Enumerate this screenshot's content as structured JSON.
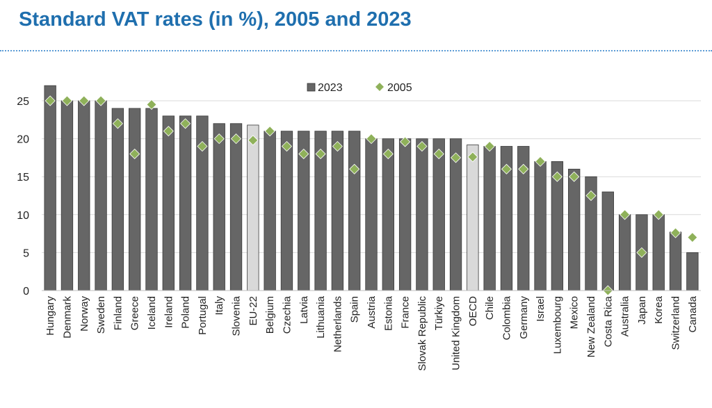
{
  "title": "Standard VAT rates (in %), 2005 and 2023",
  "colors": {
    "title": "#1f6fae",
    "bar": "#666666",
    "bar_highlight": "#d9d9d9",
    "marker": "#8fb15a",
    "grid": "#d9d9d9"
  },
  "chart_data": {
    "type": "bar",
    "title": "Standard VAT rates (in %), 2005 and 2023",
    "xlabel": "",
    "ylabel": "",
    "ylim": [
      0,
      27
    ],
    "yticks": [
      0,
      5,
      10,
      15,
      20,
      25
    ],
    "grid": true,
    "legend_position": "top-center",
    "categories": [
      "Hungary",
      "Denmark",
      "Norway",
      "Sweden",
      "Finland",
      "Greece",
      "Iceland",
      "Ireland",
      "Poland",
      "Portugal",
      "Italy",
      "Slovenia",
      "EU-22",
      "Belgium",
      "Czechia",
      "Latvia",
      "Lithuania",
      "Netherlands",
      "Spain",
      "Austria",
      "Estonia",
      "France",
      "Slovak Republic",
      "Türkiye",
      "United Kingdom",
      "OECD",
      "Chile",
      "Colombia",
      "Germany",
      "Israel",
      "Luxembourg",
      "Mexico",
      "New Zealand",
      "Costa Rica",
      "Australia",
      "Japan",
      "Korea",
      "Switzerland",
      "Canada"
    ],
    "highlight": [
      "EU-22",
      "OECD"
    ],
    "series": [
      {
        "name": "2023",
        "kind": "bar",
        "values": [
          27,
          25,
          25,
          25,
          24,
          24,
          24,
          23,
          23,
          23,
          22,
          22,
          21.8,
          21,
          21,
          21,
          21,
          21,
          21,
          20,
          20,
          20,
          20,
          20,
          20,
          19.2,
          19,
          19,
          19,
          17,
          17,
          16,
          15,
          13,
          10,
          10,
          10,
          7.7,
          5
        ]
      },
      {
        "name": "2005",
        "kind": "marker",
        "values": [
          25,
          25,
          25,
          25,
          22,
          18,
          24.5,
          21,
          22,
          19,
          20,
          20,
          19.8,
          21,
          19,
          18,
          18,
          19,
          16,
          20,
          18,
          19.6,
          19,
          18,
          17.5,
          17.6,
          19,
          16,
          16,
          17,
          15,
          15,
          12.5,
          0,
          10,
          5,
          10,
          7.6,
          7
        ]
      }
    ]
  }
}
